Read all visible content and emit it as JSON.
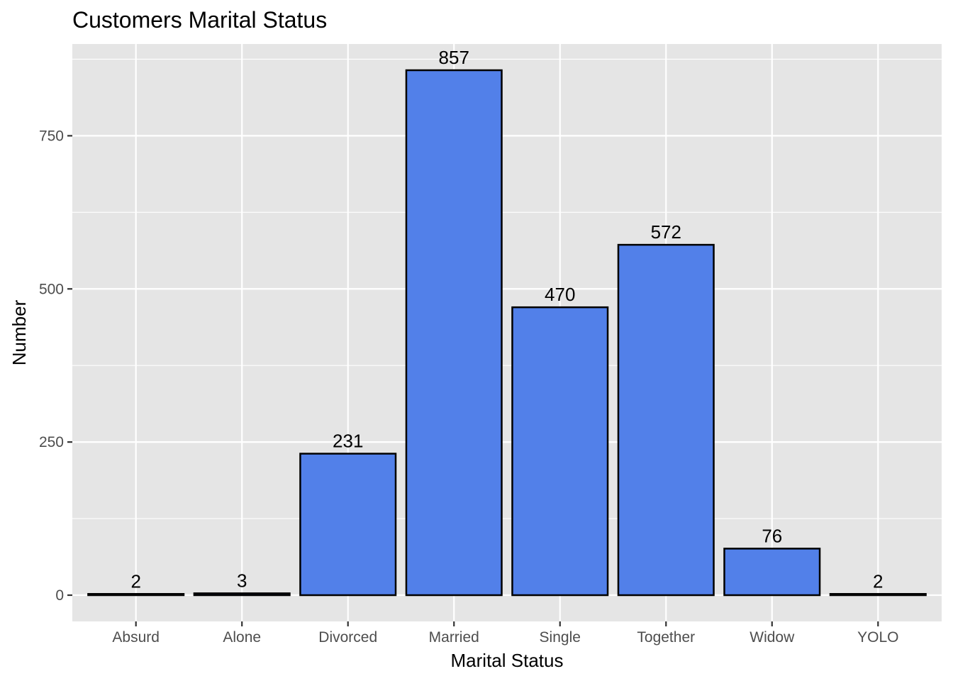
{
  "chart_data": {
    "type": "bar",
    "title": "Customers Marital Status",
    "xlabel": "Marital Status",
    "ylabel": "Number",
    "categories": [
      "Absurd",
      "Alone",
      "Divorced",
      "Married",
      "Single",
      "Together",
      "Widow",
      "YOLO"
    ],
    "values": [
      2,
      3,
      231,
      857,
      470,
      572,
      76,
      2
    ],
    "data_labels": [
      "2",
      "3",
      "231",
      "857",
      "470",
      "572",
      "76",
      "2"
    ],
    "yticks": [
      0,
      250,
      500,
      750
    ],
    "ytick_labels": [
      "0",
      "250",
      "500",
      "750"
    ],
    "ylim": [
      -42.85,
      899.85
    ],
    "grid": true,
    "legend": "none",
    "colors": {
      "bar_fill": "#5280E9",
      "bar_outline": "#000000",
      "panel_background": "#E5E5E5",
      "grid": "#FFFFFF"
    }
  }
}
